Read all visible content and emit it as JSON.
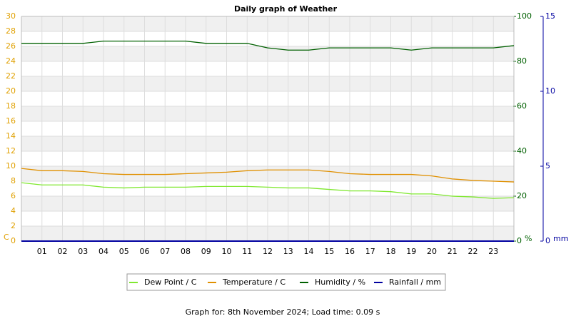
{
  "chart_data": {
    "type": "line",
    "title": "Daily graph of Weather",
    "footer": "Graph for: 8th November 2024; Load time: 0.09 s",
    "y_label": "C",
    "y2_label": "%",
    "y3_label": "mm",
    "x": [
      0,
      1,
      2,
      3,
      4,
      5,
      6,
      7,
      8,
      9,
      10,
      11,
      12,
      13,
      14,
      15,
      16,
      17,
      18,
      19,
      20,
      21,
      22,
      23,
      24
    ],
    "xlim": [
      0,
      24
    ],
    "xticks": [
      {
        "value": 1,
        "label": "01"
      },
      {
        "value": 2,
        "label": "02"
      },
      {
        "value": 3,
        "label": "03"
      },
      {
        "value": 4,
        "label": "04"
      },
      {
        "value": 5,
        "label": "05"
      },
      {
        "value": 6,
        "label": "06"
      },
      {
        "value": 7,
        "label": "07"
      },
      {
        "value": 8,
        "label": "08"
      },
      {
        "value": 9,
        "label": "09"
      },
      {
        "value": 10,
        "label": "10"
      },
      {
        "value": 11,
        "label": "11"
      },
      {
        "value": 12,
        "label": "12"
      },
      {
        "value": 13,
        "label": "13"
      },
      {
        "value": 14,
        "label": "14"
      },
      {
        "value": 15,
        "label": "15"
      },
      {
        "value": 16,
        "label": "16"
      },
      {
        "value": 17,
        "label": "17"
      },
      {
        "value": 18,
        "label": "18"
      },
      {
        "value": 19,
        "label": "19"
      },
      {
        "value": 20,
        "label": "20"
      },
      {
        "value": 21,
        "label": "21"
      },
      {
        "value": 22,
        "label": "22"
      },
      {
        "value": 23,
        "label": "23"
      }
    ],
    "ylim": [
      0,
      30
    ],
    "yticks": [
      0,
      2,
      4,
      6,
      8,
      10,
      12,
      14,
      16,
      18,
      20,
      22,
      24,
      26,
      28,
      30
    ],
    "y2lim": [
      0,
      100
    ],
    "y2ticks": [
      0,
      20,
      40,
      60,
      80,
      100
    ],
    "y3lim": [
      0,
      15
    ],
    "y3ticks": [
      0,
      5,
      10,
      15
    ],
    "grid": true,
    "series": [
      {
        "name": "Dew Point / C",
        "color": "#80e830",
        "values": [
          7.8,
          7.5,
          7.5,
          7.5,
          7.2,
          7.1,
          7.2,
          7.2,
          7.2,
          7.3,
          7.3,
          7.3,
          7.2,
          7.1,
          7.1,
          6.9,
          6.7,
          6.7,
          6.6,
          6.3,
          6.3,
          6.0,
          5.9,
          5.7,
          5.8
        ]
      },
      {
        "name": "Temperature / C",
        "color": "#e09000",
        "values": [
          9.7,
          9.4,
          9.4,
          9.3,
          9.0,
          8.9,
          8.9,
          8.9,
          9.0,
          9.1,
          9.2,
          9.4,
          9.5,
          9.5,
          9.5,
          9.3,
          9.0,
          8.9,
          8.9,
          8.9,
          8.7,
          8.3,
          8.1,
          8.0,
          7.9
        ]
      },
      {
        "name": "Humidity / %",
        "color": "#006000",
        "axis": "y2",
        "values": [
          88,
          88,
          88,
          88,
          89,
          89,
          89,
          89,
          89,
          88,
          88,
          88,
          86,
          85,
          85,
          86,
          86,
          86,
          86,
          85,
          86,
          86,
          86,
          86,
          87
        ]
      },
      {
        "name": "Rainfall / mm",
        "color": "#0000a0",
        "axis": "y3",
        "values": [
          0,
          0,
          0,
          0,
          0,
          0,
          0,
          0,
          0,
          0,
          0,
          0,
          0,
          0,
          0,
          0,
          0,
          0,
          0,
          0,
          0,
          0,
          0,
          0,
          0
        ]
      }
    ]
  }
}
